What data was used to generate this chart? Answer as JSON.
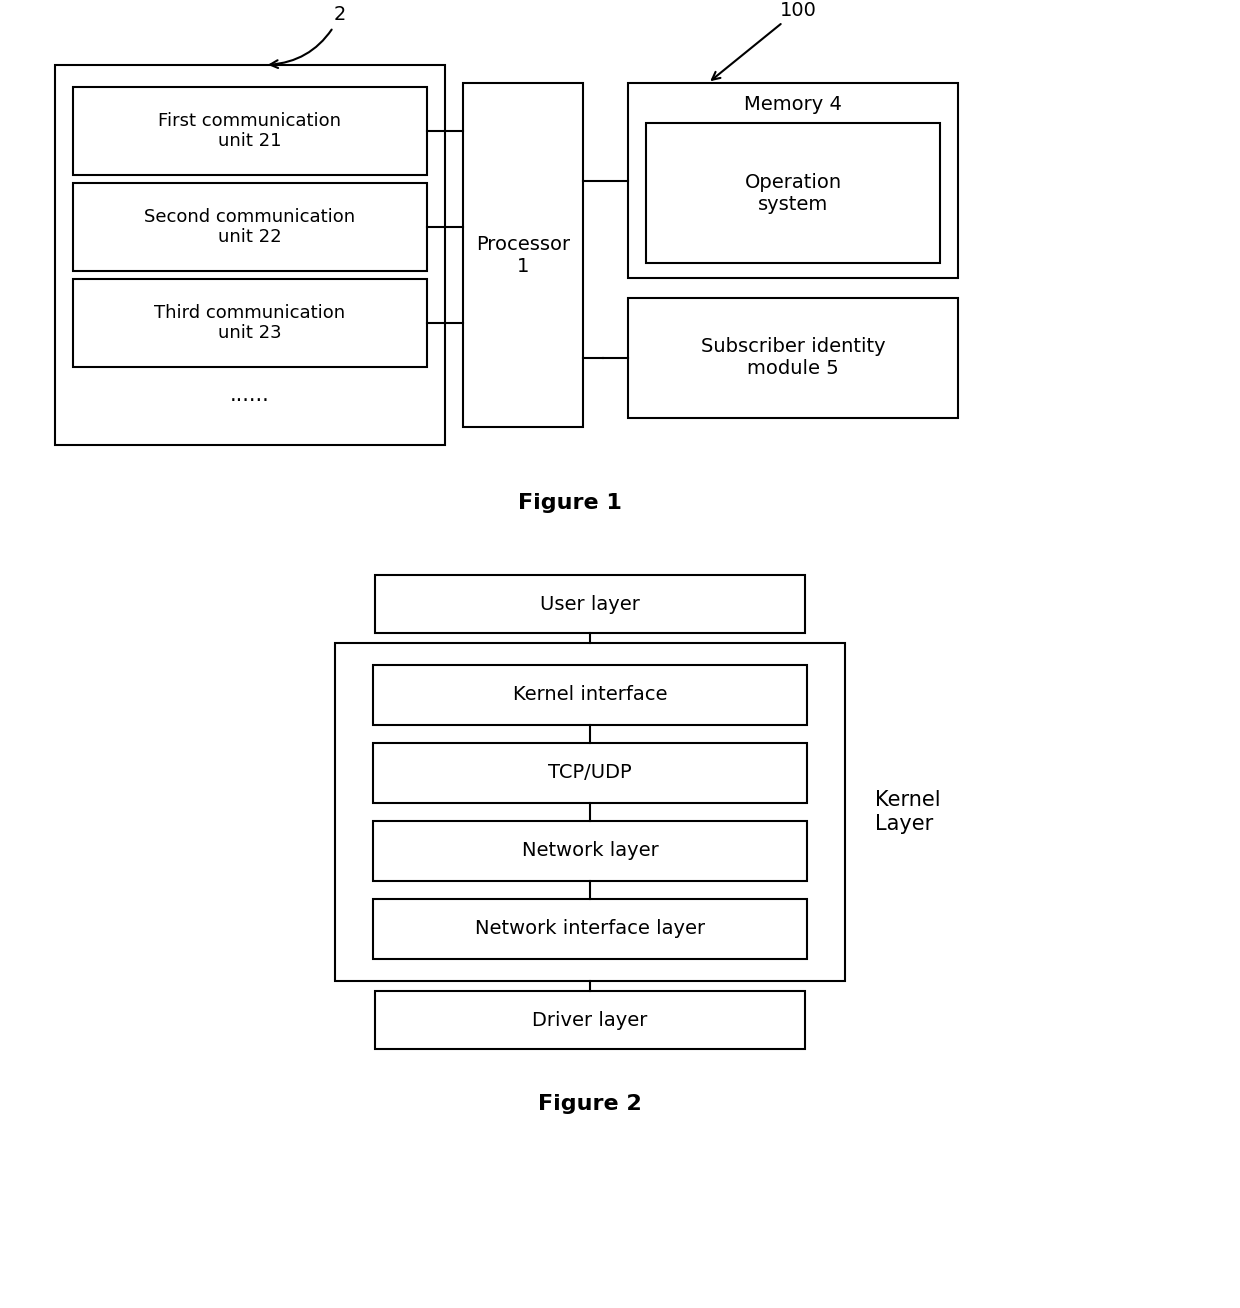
{
  "fig1": {
    "title": "Figure 1",
    "label_2": "2",
    "label_100": "100",
    "comm_unit_labels": [
      "First communication\nunit 21",
      "Second communication\nunit 22",
      "Third communication\nunit 23"
    ],
    "dots": "......",
    "processor_label": "Processor\n1",
    "memory_label": "Memory 4",
    "op_system_label": "Operation\nsystem",
    "sim_label": "Subscriber identity\nmodule 5"
  },
  "fig2": {
    "title": "Figure 2",
    "user_layer": "User layer",
    "kernel_layer_label": "Kernel\nLayer",
    "inner_layers": [
      "Kernel interface",
      "TCP/UDP",
      "Network layer",
      "Network interface layer"
    ],
    "driver_layer": "Driver layer"
  },
  "bg_color": "#ffffff",
  "line_color": "#000000",
  "font_size": 13,
  "font_size_title": 14,
  "line_width": 1.5
}
